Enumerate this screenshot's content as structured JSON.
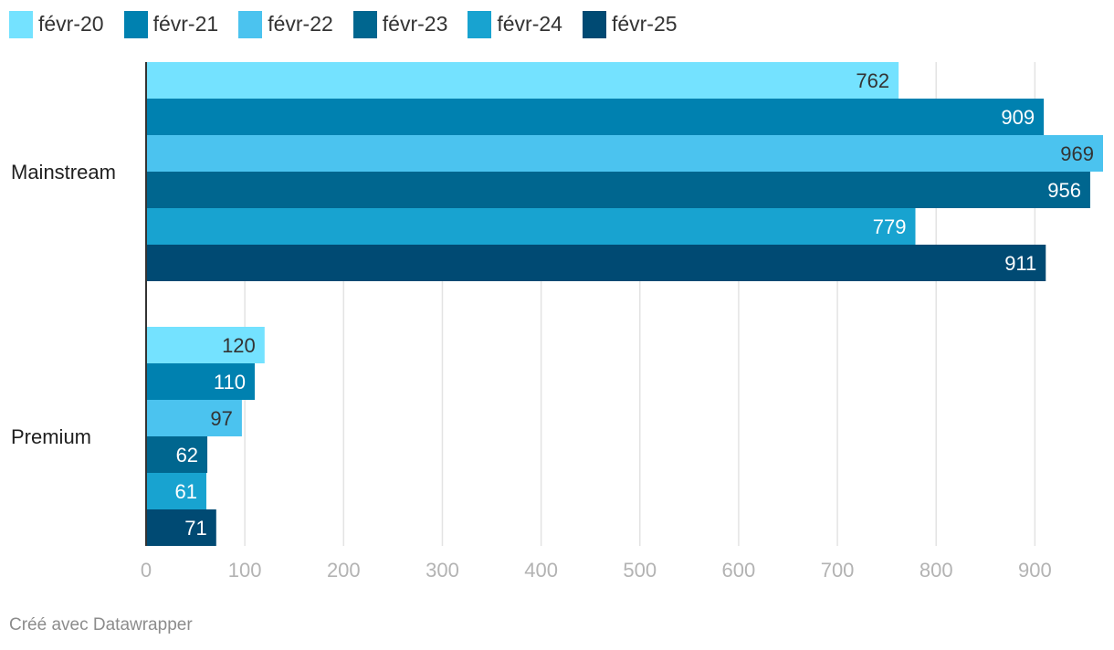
{
  "chart_data": {
    "type": "bar",
    "orientation": "horizontal",
    "categories": [
      "Mainstream",
      "Premium"
    ],
    "series": [
      {
        "name": "févr-20",
        "color": "#74e2ff",
        "label_color": "#333333",
        "values": [
          762,
          120
        ]
      },
      {
        "name": "févr-21",
        "color": "#0081b0",
        "label_color": "#ffffff",
        "values": [
          909,
          110
        ]
      },
      {
        "name": "févr-22",
        "color": "#4bc3ef",
        "label_color": "#333333",
        "values": [
          969,
          97
        ]
      },
      {
        "name": "févr-23",
        "color": "#00668f",
        "label_color": "#ffffff",
        "values": [
          956,
          62
        ]
      },
      {
        "name": "févr-24",
        "color": "#18a3d0",
        "label_color": "#ffffff",
        "values": [
          779,
          61
        ]
      },
      {
        "name": "févr-25",
        "color": "#004a73",
        "label_color": "#ffffff",
        "values": [
          911,
          71
        ]
      }
    ],
    "xlim": [
      0,
      969
    ],
    "xticks": [
      0,
      100,
      200,
      300,
      400,
      500,
      600,
      700,
      800,
      900
    ],
    "grid": true,
    "legend_position": "top-left"
  },
  "footer": {
    "credit": "Créé avec Datawrapper"
  }
}
